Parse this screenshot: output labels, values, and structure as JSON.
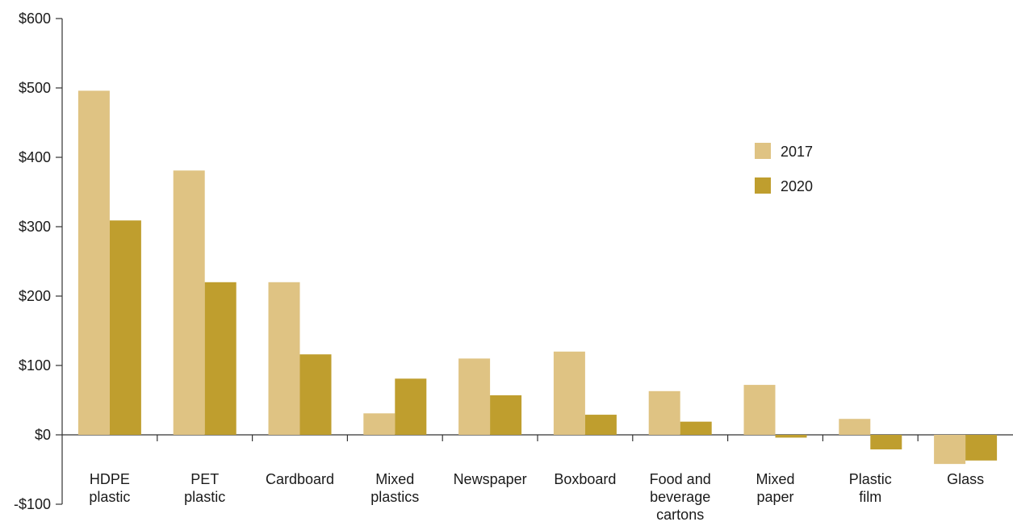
{
  "chart_data": {
    "type": "bar",
    "title": "",
    "xlabel": "",
    "ylabel": "",
    "ylim": [
      -100,
      600
    ],
    "yticks": [
      -100,
      0,
      100,
      200,
      300,
      400,
      500,
      600
    ],
    "ytick_labels": [
      "-$100",
      "$0",
      "$100",
      "$200",
      "$300",
      "$400",
      "$500",
      "$600"
    ],
    "grid": false,
    "legend_position": "right",
    "categories": [
      [
        "HDPE",
        "plastic"
      ],
      [
        "PET",
        "plastic"
      ],
      [
        "Cardboard"
      ],
      [
        "Mixed",
        "plastics"
      ],
      [
        "Newspaper"
      ],
      [
        "Boxboard"
      ],
      [
        "Food and",
        "beverage",
        "cartons"
      ],
      [
        "Mixed",
        "paper"
      ],
      [
        "Plastic",
        "film"
      ],
      [
        "Glass"
      ]
    ],
    "series": [
      {
        "name": "2017",
        "color": "#dfc383",
        "values": [
          496,
          381,
          220,
          31,
          110,
          120,
          63,
          72,
          23,
          -42
        ]
      },
      {
        "name": "2020",
        "color": "#bf9e2e",
        "values": [
          309,
          220,
          116,
          81,
          57,
          29,
          19,
          -4,
          -21,
          -37
        ]
      }
    ]
  }
}
